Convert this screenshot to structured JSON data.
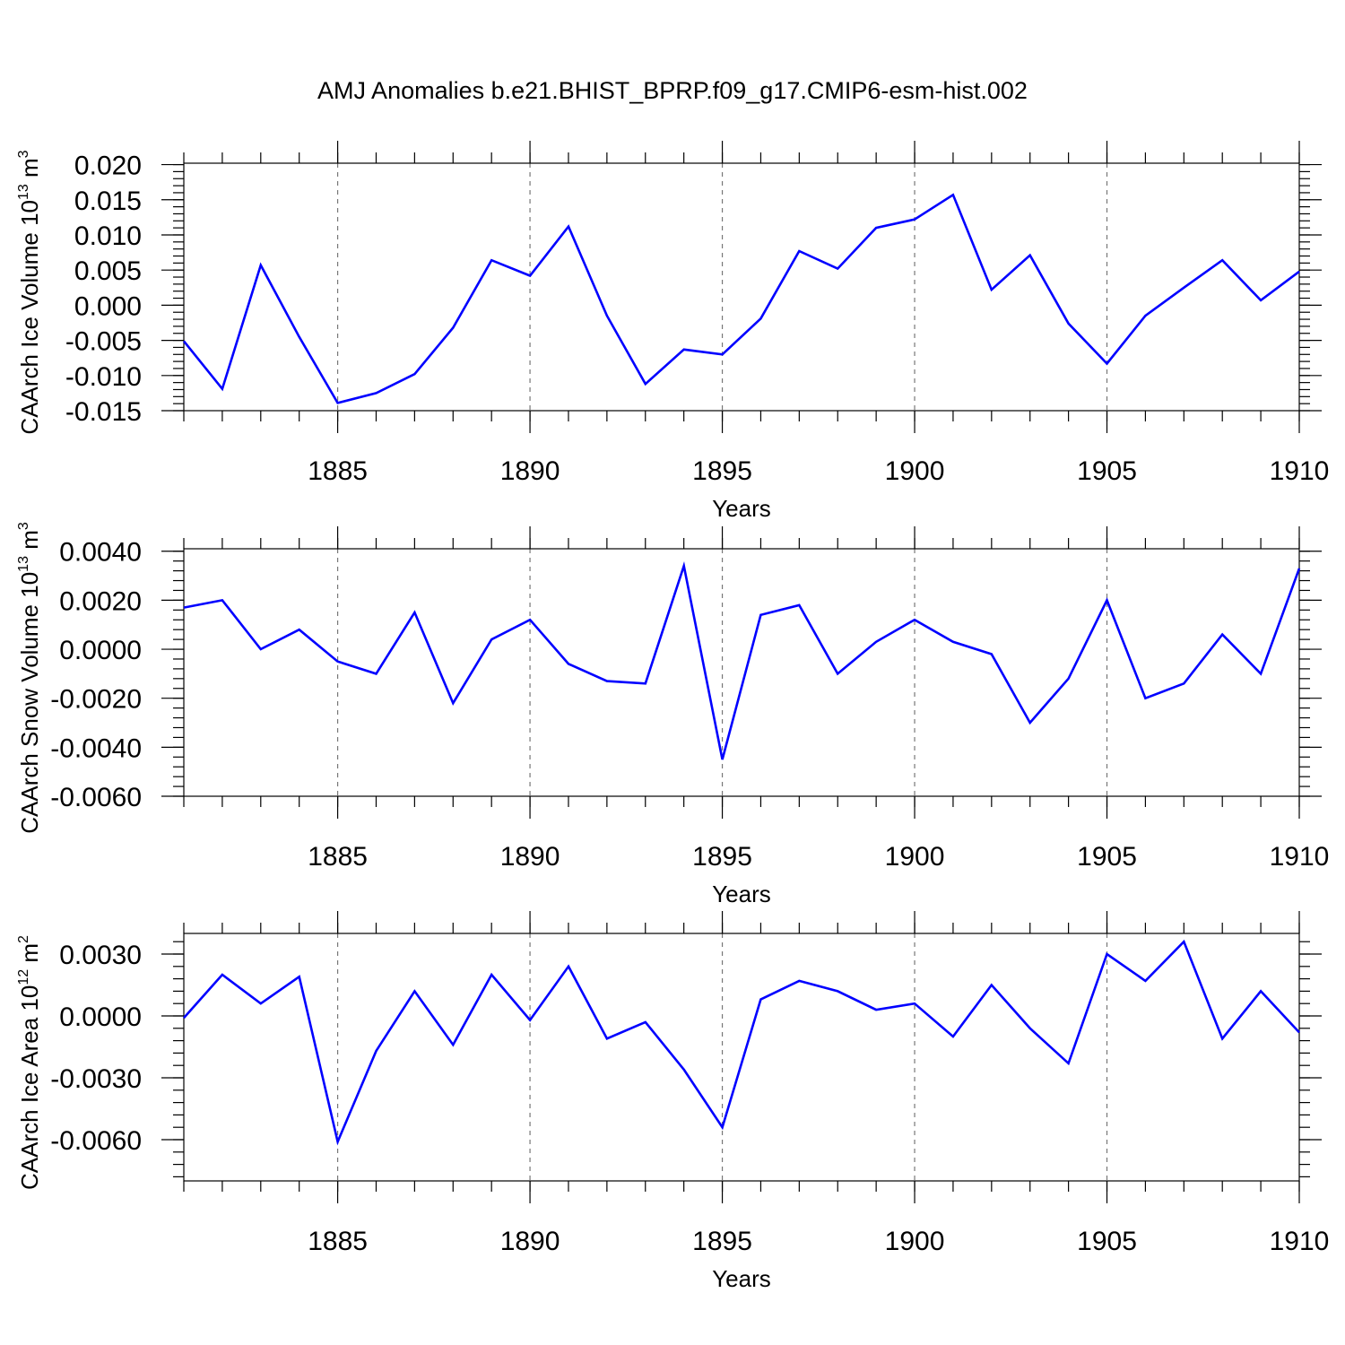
{
  "title": "AMJ Anomalies b.e21.BHIST_BPRP.f09_g17.CMIP6-esm-hist.002",
  "colors": {
    "line": "#0000ff",
    "grid": "#777777",
    "frame": "#000000"
  },
  "chart_data": [
    {
      "type": "line",
      "ylabel": "CAArch Ice Volume 10",
      "ylabel_exp": "13",
      "ylabel_unit": " m",
      "ylabel_unit_exp": "3",
      "xlabel": "Years",
      "xlim": [
        1881,
        1910
      ],
      "ylim": [
        -0.015,
        0.0202
      ],
      "xticks": [
        1885,
        1890,
        1895,
        1900,
        1905,
        1910
      ],
      "xtick_labels": [
        "1885",
        "1890",
        "1895",
        "1900",
        "1905",
        "1910"
      ],
      "yticks": [
        -0.015,
        -0.01,
        -0.005,
        0.0,
        0.005,
        0.01,
        0.015,
        0.02
      ],
      "ytick_labels": [
        "-0.015",
        "-0.010",
        "-0.005",
        "0.000",
        "0.005",
        "0.010",
        "0.015",
        "0.020"
      ],
      "grid_x": true,
      "x": [
        1881,
        1882,
        1883,
        1884,
        1885,
        1886,
        1887,
        1888,
        1889,
        1890,
        1891,
        1892,
        1893,
        1894,
        1895,
        1896,
        1897,
        1898,
        1899,
        1900,
        1901,
        1902,
        1903,
        1904,
        1905,
        1906,
        1907,
        1908,
        1909,
        1910
      ],
      "values": [
        -0.0051,
        -0.0119,
        0.0057,
        -0.0045,
        -0.0139,
        -0.0125,
        -0.0098,
        -0.0032,
        0.0064,
        0.0042,
        0.0112,
        -0.0015,
        -0.0112,
        -0.0063,
        -0.007,
        -0.0019,
        0.0077,
        0.0052,
        0.011,
        0.0122,
        0.0157,
        0.0022,
        0.0071,
        -0.0026,
        -0.0083,
        -0.0015,
        0.0025,
        0.0064,
        0.0007,
        0.0048
      ]
    },
    {
      "type": "line",
      "ylabel": "CAArch Snow Volume 10",
      "ylabel_exp": "13",
      "ylabel_unit": " m",
      "ylabel_unit_exp": "3",
      "xlabel": "Years",
      "xlim": [
        1881,
        1910
      ],
      "ylim": [
        -0.006,
        0.0041
      ],
      "xticks": [
        1885,
        1890,
        1895,
        1900,
        1905,
        1910
      ],
      "xtick_labels": [
        "1885",
        "1890",
        "1895",
        "1900",
        "1905",
        "1910"
      ],
      "yticks": [
        -0.006,
        -0.004,
        -0.002,
        0.0,
        0.002,
        0.004
      ],
      "ytick_labels": [
        "-0.0060",
        "-0.0040",
        "-0.0020",
        "0.0000",
        "0.0020",
        "0.0040"
      ],
      "grid_x": true,
      "x": [
        1881,
        1882,
        1883,
        1884,
        1885,
        1886,
        1887,
        1888,
        1889,
        1890,
        1891,
        1892,
        1893,
        1894,
        1895,
        1896,
        1897,
        1898,
        1899,
        1900,
        1901,
        1902,
        1903,
        1904,
        1905,
        1906,
        1907,
        1908,
        1909,
        1910
      ],
      "values": [
        0.0017,
        0.002,
        0.0,
        0.0008,
        -0.0005,
        -0.001,
        0.0015,
        -0.0022,
        0.0004,
        0.0012,
        -0.0006,
        -0.0013,
        -0.0014,
        0.0034,
        -0.0045,
        0.0014,
        0.0018,
        -0.001,
        0.0003,
        0.0012,
        0.0003,
        -0.0002,
        -0.003,
        -0.0012,
        0.002,
        -0.002,
        -0.0014,
        0.0006,
        -0.001,
        0.0033
      ]
    },
    {
      "type": "line",
      "ylabel": "CAArch Ice Area 10",
      "ylabel_exp": "12",
      "ylabel_unit": " m",
      "ylabel_unit_exp": "2",
      "xlabel": "Years",
      "xlim": [
        1881,
        1910
      ],
      "ylim": [
        -0.008,
        0.004
      ],
      "xticks": [
        1885,
        1890,
        1895,
        1900,
        1905,
        1910
      ],
      "xtick_labels": [
        "1885",
        "1890",
        "1895",
        "1900",
        "1905",
        "1910"
      ],
      "yticks": [
        -0.006,
        -0.003,
        0.0,
        0.003
      ],
      "ytick_labels": [
        "-0.0060",
        "-0.0030",
        "0.0000",
        "0.0030"
      ],
      "grid_x": true,
      "x": [
        1881,
        1882,
        1883,
        1884,
        1885,
        1886,
        1887,
        1888,
        1889,
        1890,
        1891,
        1892,
        1893,
        1894,
        1895,
        1896,
        1897,
        1898,
        1899,
        1900,
        1901,
        1902,
        1903,
        1904,
        1905,
        1906,
        1907,
        1908,
        1909,
        1910
      ],
      "values": [
        -0.0001,
        0.002,
        0.0006,
        0.0019,
        -0.0061,
        -0.0017,
        0.0012,
        -0.0014,
        0.002,
        -0.0002,
        0.0024,
        -0.0011,
        -0.0003,
        -0.0026,
        -0.0054,
        0.0008,
        0.0017,
        0.0012,
        0.0003,
        0.0006,
        -0.001,
        0.0015,
        -0.0006,
        -0.0023,
        0.003,
        0.0017,
        0.0036,
        -0.0011,
        0.0012,
        -0.0008
      ]
    }
  ]
}
